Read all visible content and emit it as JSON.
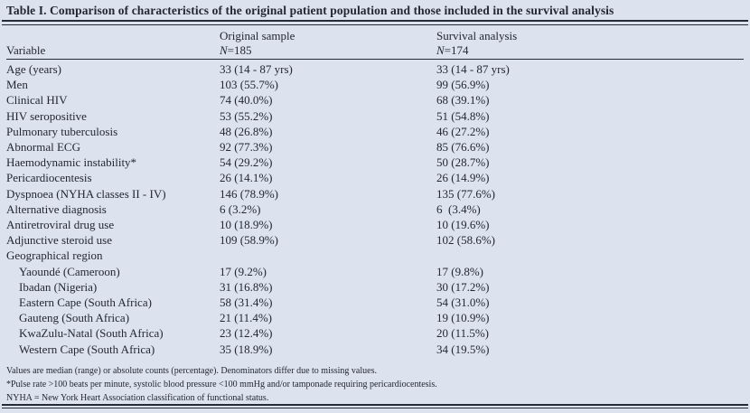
{
  "colors": {
    "background": "#dce3ef",
    "text": "#232734",
    "rule": "#262b3a"
  },
  "table": {
    "title": "Table I. Comparison of characteristics of the original patient population and those included in the survival analysis",
    "header": {
      "variable": "Variable",
      "original": {
        "line1": "Original sample",
        "n_italic": "N",
        "n_value": "=185"
      },
      "survival": {
        "line1": "Survival analysis",
        "n_italic": "N",
        "n_value": "=174"
      }
    },
    "rows": [
      {
        "label": "Age (years)",
        "indent": false,
        "original": "33 (14 - 87 yrs)",
        "survival": "33 (14 - 87 yrs)"
      },
      {
        "label": "Men",
        "indent": false,
        "original": "103 (55.7%)",
        "survival": "99 (56.9%)"
      },
      {
        "label": "Clinical HIV",
        "indent": false,
        "original": "74 (40.0%)",
        "survival": "68 (39.1%)"
      },
      {
        "label": "HIV seropositive",
        "indent": false,
        "original": "53 (55.2%)",
        "survival": "51 (54.8%)"
      },
      {
        "label": "Pulmonary tuberculosis",
        "indent": false,
        "original": "48 (26.8%)",
        "survival": "46 (27.2%)"
      },
      {
        "label": "Abnormal ECG",
        "indent": false,
        "original": "92 (77.3%)",
        "survival": "85 (76.6%)"
      },
      {
        "label": "Haemodynamic instability*",
        "indent": false,
        "original": "54 (29.2%)",
        "survival": "50 (28.7%)"
      },
      {
        "label": "Pericardiocentesis",
        "indent": false,
        "original": "26 (14.1%)",
        "survival": "26 (14.9%)"
      },
      {
        "label": "Dyspnoea (NYHA classes II - IV)",
        "indent": false,
        "original": "146 (78.9%)",
        "survival": "135 (77.6%)"
      },
      {
        "label": "Alternative diagnosis",
        "indent": false,
        "original": "6 (3.2%)",
        "survival": "6  (3.4%)"
      },
      {
        "label": "Antiretroviral drug use",
        "indent": false,
        "original": "10 (18.9%)",
        "survival": "10 (19.6%)"
      },
      {
        "label": "Adjunctive steroid use",
        "indent": false,
        "original": "109 (58.9%)",
        "survival": "102 (58.6%)"
      },
      {
        "label": "Geographical region",
        "indent": false,
        "original": "",
        "survival": ""
      },
      {
        "label": "Yaoundé (Cameroon)",
        "indent": true,
        "original": "17 (9.2%)",
        "survival": "17 (9.8%)"
      },
      {
        "label": "Ibadan (Nigeria)",
        "indent": true,
        "original": "31 (16.8%)",
        "survival": "30 (17.2%)"
      },
      {
        "label": "Eastern Cape (South Africa)",
        "indent": true,
        "original": "58 (31.4%)",
        "survival": "54 (31.0%)"
      },
      {
        "label": "Gauteng (South Africa)",
        "indent": true,
        "original": "21 (11.4%)",
        "survival": "19 (10.9%)"
      },
      {
        "label": "KwaZulu-Natal (South Africa)",
        "indent": true,
        "original": "23 (12.4%)",
        "survival": "20 (11.5%)"
      },
      {
        "label": "Western Cape (South Africa)",
        "indent": true,
        "original": "35 (18.9%)",
        "survival": "34 (19.5%)"
      }
    ],
    "footnotes": [
      "Values are median (range) or absolute counts (percentage). Denominators differ due to missing values.",
      "*Pulse rate >100 beats per minute, systolic blood pressure <100 mmHg and/or tamponade requiring pericardiocentesis.",
      "NYHA = New York Heart Association classification of functional status."
    ]
  }
}
